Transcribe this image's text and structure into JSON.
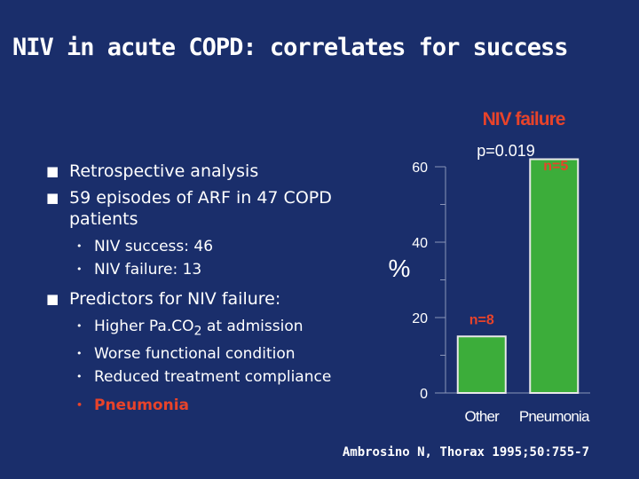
{
  "slide": {
    "title": "NIV in acute COPD: correlates for success",
    "citation": "Ambrosino N, Thorax 1995;50:755-7"
  },
  "bullets": {
    "b1": "Retrospective analysis",
    "b2": "59 episodes of ARF in 47 COPD patients",
    "b2_subs": [
      "NIV success: 46",
      "NIV failure: 13"
    ],
    "b3": "Predictors for NIV failure:",
    "b3_sub1_pre": "Higher Pa.CO",
    "b3_sub1_subscript": "2",
    "b3_sub1_post": " at admission",
    "b3_sub2": "Worse functional condition",
    "b3_sub3": "Reduced treatment compliance",
    "b3_highlight": "Pneumonia"
  },
  "colors": {
    "background": "#1a2e6b",
    "title": "#ffffff",
    "bar_fill": "#3cad3a",
    "bar_border": "#e8e8e8",
    "axis": "#8a96b8",
    "label_orange": "#e8432a",
    "text": "#ffffff"
  },
  "chart_data": {
    "type": "bar",
    "title": "NIV failure",
    "subtitle": "p=0.019",
    "ylabel": "%",
    "xlabel": "",
    "ylim": [
      0,
      60
    ],
    "yticks": [
      0,
      20,
      40,
      60
    ],
    "categories": [
      "Other",
      "Pneumonia"
    ],
    "values": [
      15,
      62
    ],
    "bar_labels": [
      "n=8",
      "n=5"
    ],
    "legend": ""
  }
}
